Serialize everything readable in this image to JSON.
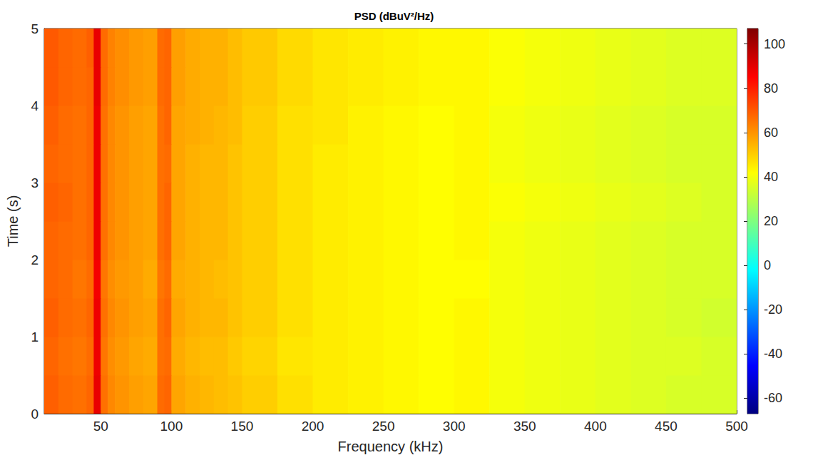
{
  "chart_data": {
    "type": "heatmap",
    "title": "PSD (dBuV²/Hz)",
    "x_label": "Frequency (kHz)",
    "y_label": "Time (s)",
    "xlim": [
      10,
      500
    ],
    "xticks": [
      50,
      100,
      150,
      200,
      250,
      300,
      350,
      400,
      450,
      500
    ],
    "ylim": [
      0,
      5
    ],
    "yticks": [
      0,
      1,
      2,
      3,
      4,
      5
    ],
    "x_edges": [
      10,
      20,
      30,
      40,
      45,
      50,
      55,
      60,
      70,
      80,
      90,
      95,
      100,
      110,
      120,
      130,
      140,
      150,
      175,
      200,
      225,
      250,
      275,
      300,
      325,
      350,
      375,
      400,
      425,
      450,
      475,
      500
    ],
    "y_edges": [
      0,
      0.5,
      1,
      1.5,
      2,
      2.5,
      3,
      3.5,
      4,
      4.5,
      5
    ],
    "cells": [
      [
        69,
        67,
        66,
        68,
        89,
        66,
        62,
        60,
        58,
        57,
        67,
        68,
        57,
        55,
        54,
        53,
        52,
        50,
        47,
        45,
        44,
        43,
        42,
        43,
        40,
        39,
        38,
        37,
        36,
        35,
        35
      ],
      [
        68,
        66,
        65,
        67,
        88,
        65,
        61,
        59,
        57,
        56,
        66,
        67,
        56,
        54,
        53,
        53,
        51,
        49,
        46,
        45,
        44,
        43,
        42,
        43,
        40,
        39,
        38,
        37,
        36,
        36,
        35
      ],
      [
        69,
        67,
        66,
        68,
        88,
        66,
        62,
        60,
        58,
        57,
        66,
        68,
        57,
        55,
        54,
        54,
        52,
        50,
        47,
        45,
        44,
        43,
        42,
        43,
        40,
        39,
        38,
        37,
        36,
        35,
        34
      ],
      [
        68,
        67,
        65,
        67,
        87,
        65,
        61,
        59,
        58,
        56,
        65,
        67,
        56,
        55,
        54,
        53,
        52,
        50,
        47,
        45,
        44,
        43,
        42,
        42,
        40,
        39,
        38,
        37,
        36,
        35,
        35
      ],
      [
        68,
        67,
        66,
        68,
        88,
        66,
        62,
        60,
        58,
        57,
        66,
        68,
        57,
        55,
        54,
        54,
        52,
        50,
        47,
        45,
        44,
        43,
        42,
        43,
        40,
        39,
        38,
        37,
        36,
        35,
        35
      ],
      [
        69,
        68,
        66,
        68,
        88,
        66,
        62,
        60,
        58,
        57,
        66,
        68,
        57,
        55,
        54,
        54,
        52,
        50,
        47,
        45,
        44,
        43,
        42,
        43,
        41,
        40,
        39,
        38,
        37,
        36,
        35
      ],
      [
        68,
        67,
        66,
        68,
        88,
        66,
        62,
        60,
        58,
        57,
        66,
        67,
        57,
        55,
        54,
        54,
        52,
        50,
        47,
        45,
        44,
        43,
        42,
        43,
        40,
        39,
        38,
        37,
        36,
        35,
        35
      ],
      [
        69,
        67,
        66,
        68,
        88,
        66,
        62,
        60,
        58,
        57,
        66,
        68,
        57,
        56,
        55,
        54,
        53,
        50,
        47,
        46,
        44,
        43,
        42,
        43,
        40,
        39,
        38,
        37,
        36,
        35,
        35
      ],
      [
        70,
        68,
        67,
        68,
        89,
        67,
        63,
        61,
        59,
        58,
        67,
        68,
        58,
        56,
        55,
        55,
        53,
        51,
        48,
        46,
        45,
        44,
        43,
        43,
        41,
        40,
        39,
        38,
        37,
        36,
        36
      ],
      [
        70,
        68,
        67,
        69,
        89,
        67,
        63,
        61,
        59,
        58,
        67,
        68,
        58,
        56,
        55,
        55,
        53,
        51,
        48,
        46,
        45,
        44,
        43,
        43,
        41,
        40,
        39,
        38,
        37,
        36,
        36
      ]
    ],
    "colorbar": {
      "lim": [
        -67,
        107
      ],
      "ticks": [
        -60,
        -40,
        -20,
        0,
        20,
        40,
        60,
        80,
        100
      ]
    }
  }
}
